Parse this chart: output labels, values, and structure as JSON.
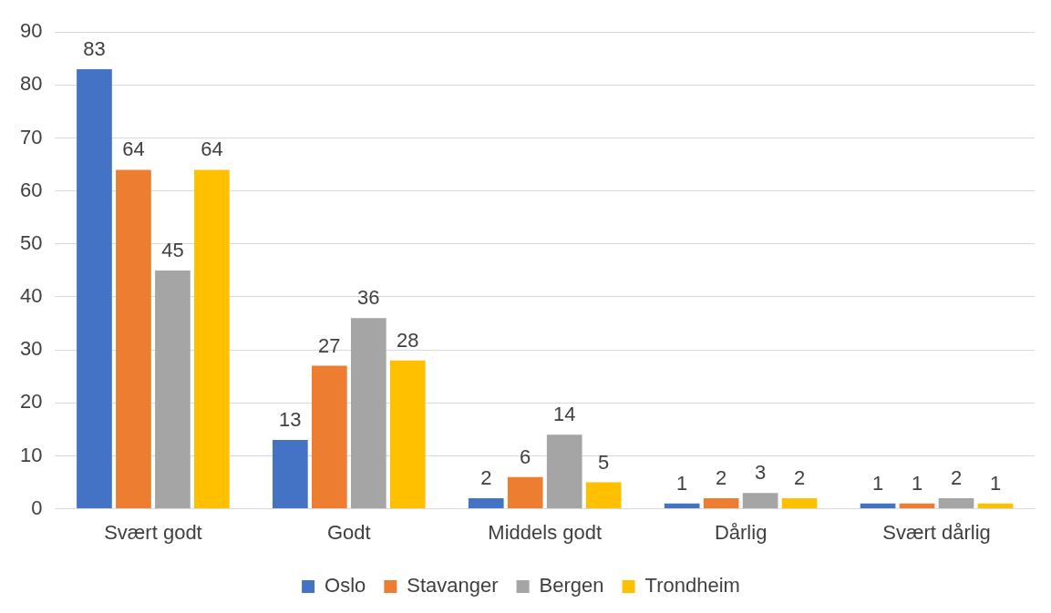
{
  "chart_data": {
    "type": "bar",
    "categories": [
      "Svært godt",
      "Godt",
      "Middels godt",
      "Dårlig",
      "Svært dårlig"
    ],
    "series": [
      {
        "name": "Oslo",
        "color": "#4472c4",
        "values": [
          83,
          13,
          2,
          1,
          1
        ]
      },
      {
        "name": "Stavanger",
        "color": "#ed7d31",
        "values": [
          64,
          27,
          6,
          2,
          1
        ]
      },
      {
        "name": "Bergen",
        "color": "#a5a5a5",
        "values": [
          45,
          36,
          14,
          3,
          2
        ]
      },
      {
        "name": "Trondheim",
        "color": "#ffc000",
        "values": [
          64,
          28,
          5,
          2,
          1
        ]
      }
    ],
    "ylim": [
      0,
      90
    ],
    "yticks": [
      0,
      10,
      20,
      30,
      40,
      50,
      60,
      70,
      80,
      90
    ],
    "grid": "y",
    "legend": "bottom",
    "data_labels": true
  }
}
